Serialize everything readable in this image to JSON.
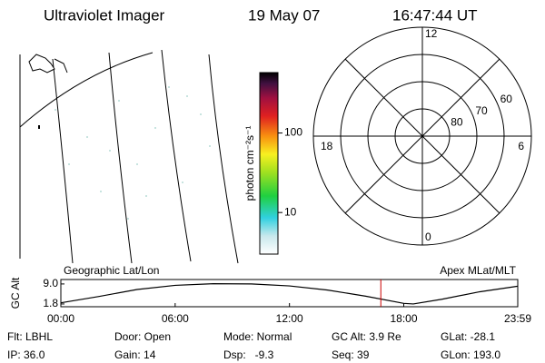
{
  "header": {
    "title": "Ultraviolet Imager",
    "date": "19 May 07",
    "time": "16:47:44 UT"
  },
  "colorbar": {
    "label": "photon cm⁻²s⁻¹",
    "scale": "log",
    "lim": [
      3,
      575
    ],
    "ticks": [
      10,
      100
    ]
  },
  "polar": {
    "lim": [
      50,
      90
    ],
    "rings": [
      80,
      70,
      60
    ],
    "hours": [
      12,
      6,
      18,
      0
    ]
  },
  "chart_data": {
    "type": "line",
    "y_label": "GC Alt",
    "left_label": "Geographic Lat/Lon",
    "right_label": "Apex MLat/MLT",
    "x": [
      0,
      2,
      4,
      6,
      8,
      10,
      12,
      14,
      16,
      18,
      18.5,
      20,
      22,
      23.983
    ],
    "series": [
      {
        "name": "GC Alt",
        "color": "#000000",
        "values": [
          2.2,
          4.5,
          7.0,
          8.5,
          9.1,
          9.0,
          8.3,
          6.8,
          4.6,
          2.0,
          1.8,
          3.5,
          6.2,
          8.2
        ]
      }
    ],
    "marker_x": 16.796,
    "marker_color": "#cc0000",
    "xlim": [
      0,
      23.983
    ],
    "xticks": [
      {
        "value": 0,
        "label": "00:00"
      },
      {
        "value": 6,
        "label": "06:00"
      },
      {
        "value": 12,
        "label": "12:00"
      },
      {
        "value": 18,
        "label": "18:00"
      },
      {
        "value": 23.983,
        "label": "23:59"
      }
    ],
    "ylim": [
      0.8,
      10.6
    ],
    "yticks": [
      {
        "value": 9,
        "label": "9.0"
      },
      1.8
    ]
  },
  "status": {
    "rows": [
      [
        "Flt: LBHL",
        "Door: Open",
        "Mode: Normal",
        "GC Alt: 3.9 Re",
        "GLat: -28.1"
      ],
      [
        "IP: 36.0",
        "Gain: 14",
        "Dsp:   -9.3",
        "Seq: 39",
        "GLon: 193.0"
      ]
    ]
  }
}
